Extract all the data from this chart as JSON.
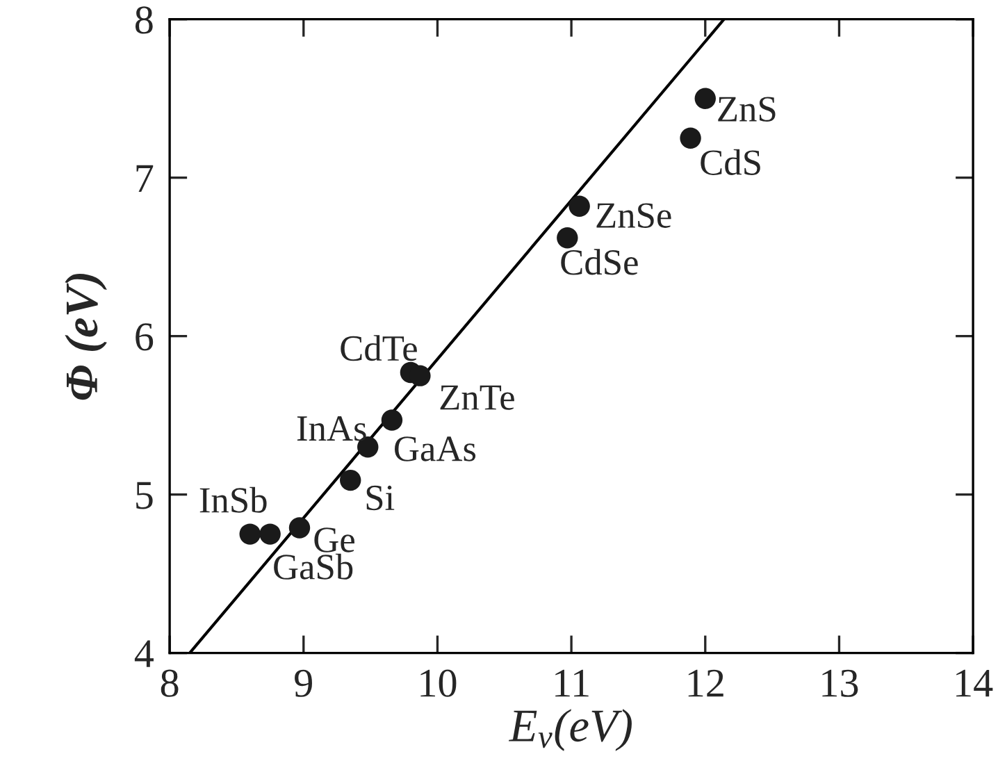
{
  "chart_data": {
    "type": "scatter",
    "xlabel": "E$_{v}$(eV)",
    "ylabel": "Φ (eV)",
    "xlim": [
      8,
      14
    ],
    "xticks": [
      8,
      9,
      10,
      11,
      12,
      13,
      14
    ],
    "ylim": [
      4,
      8
    ],
    "yticks": [
      4,
      5,
      6,
      7,
      8
    ],
    "grid": false,
    "legend": false,
    "series": [
      {
        "color": "#1a1a1a",
        "marker": "circle",
        "x": [
          8.6,
          8.75,
          8.97,
          9.35,
          9.48,
          9.66,
          9.8,
          9.87,
          10.97,
          11.06,
          11.89,
          12.0
        ],
        "values": [
          4.75,
          4.75,
          4.79,
          5.09,
          5.3,
          5.47,
          5.77,
          5.75,
          6.62,
          6.82,
          7.25,
          7.5
        ]
      },
      {
        "type": "line",
        "color": "#000000",
        "marker": "none",
        "line_style": "solid",
        "x": [
          8.15,
          12.14
        ],
        "values": [
          4,
          8
        ]
      }
    ],
    "annotations": [
      {
        "text": "InSb",
        "x": 8.6,
        "y": 4.75
      },
      {
        "text": "GaSb",
        "x": 8.75,
        "y": 4.75
      },
      {
        "text": "Ge",
        "x": 8.97,
        "y": 4.79
      },
      {
        "text": "Si",
        "x": 9.35,
        "y": 5.09
      },
      {
        "text": "InAs",
        "x": 9.48,
        "y": 5.3
      },
      {
        "text": "GaAs",
        "x": 9.66,
        "y": 5.47
      },
      {
        "text": "CdTe",
        "x": 9.8,
        "y": 5.77
      },
      {
        "text": "ZnTe",
        "x": 9.87,
        "y": 5.75
      },
      {
        "text": "CdSe",
        "x": 10.97,
        "y": 6.62
      },
      {
        "text": "ZnSe",
        "x": 11.06,
        "y": 6.82
      },
      {
        "text": "CdS",
        "x": 11.89,
        "y": 7.25
      },
      {
        "text": "ZnS",
        "x": 12.0,
        "y": 7.5
      }
    ]
  }
}
